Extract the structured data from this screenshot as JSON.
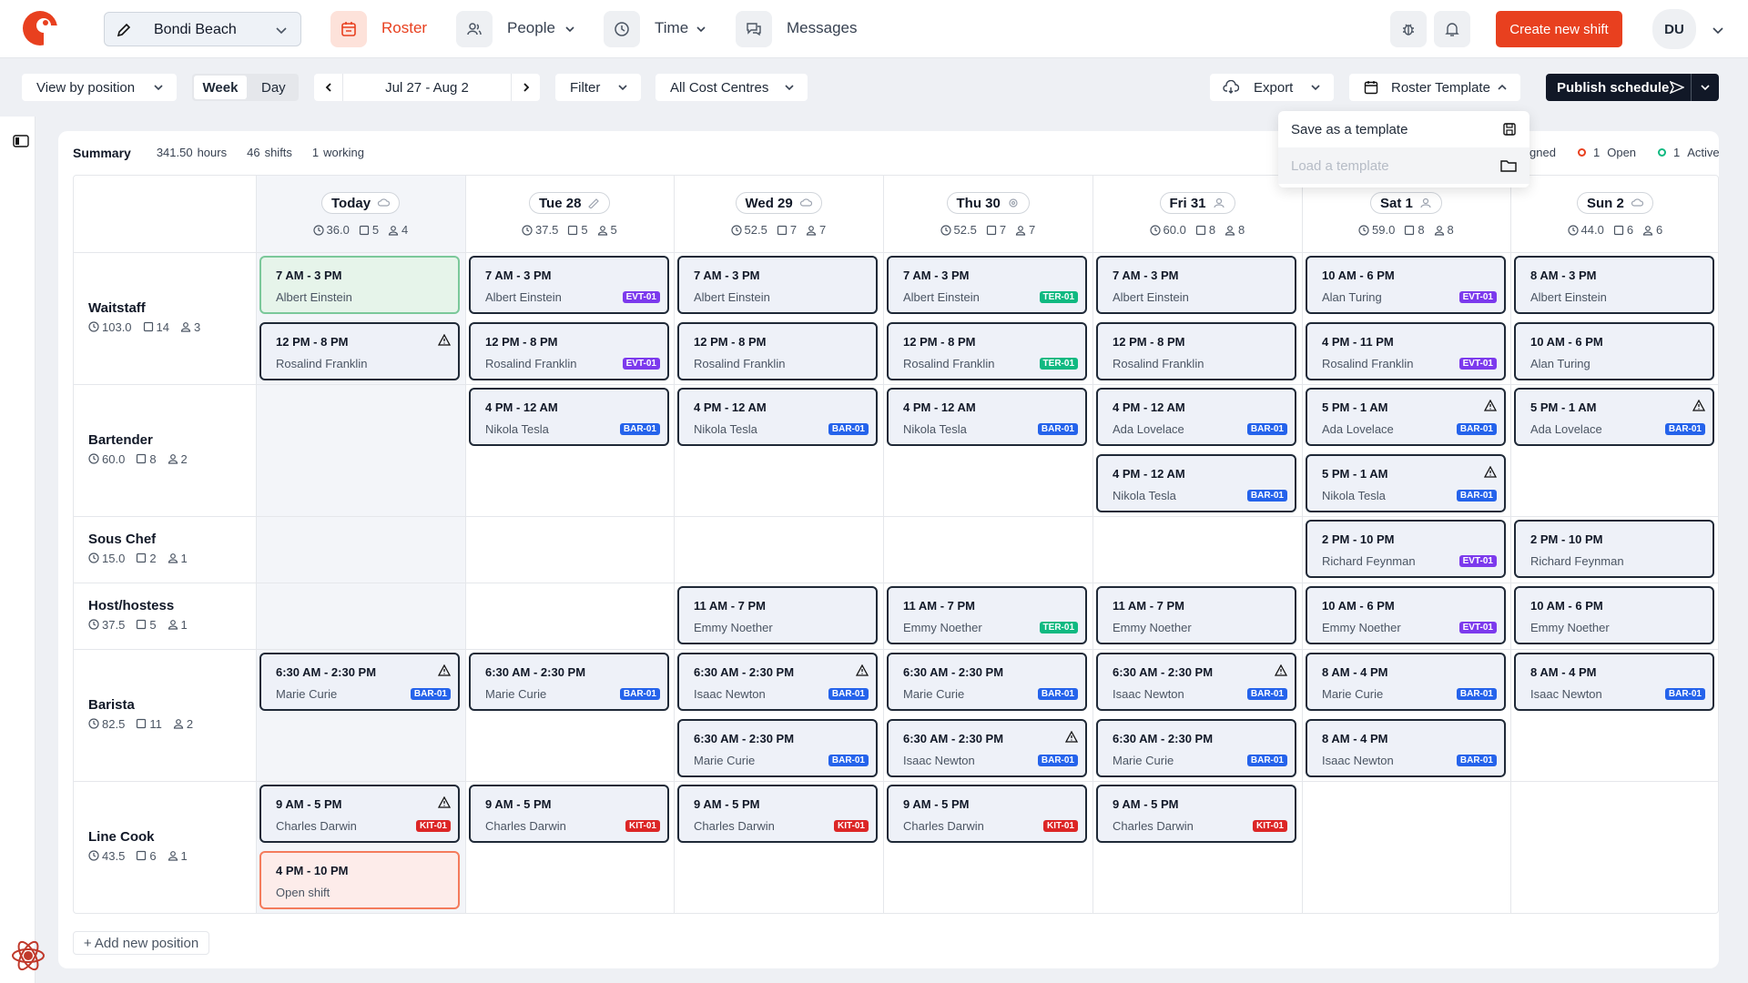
{
  "header": {
    "location": "Bondi Beach",
    "nav": {
      "roster": "Roster",
      "people": "People",
      "time": "Time",
      "messages": "Messages"
    },
    "create_label": "Create new shift",
    "user_initials": "DU",
    "colors": {
      "brand": "#e8401f",
      "evt": "#7c3aed",
      "bar": "#2563eb",
      "ter": "#10b981",
      "kit": "#dc2626"
    }
  },
  "toolbar": {
    "view_by": "View by position",
    "week": "Week",
    "day": "Day",
    "date_range": "Jul 27 - Aug 2",
    "filter": "Filter",
    "cost_centres": "All Cost Centres",
    "export": "Export",
    "roster_template": "Roster Template",
    "publish": "Publish schedule"
  },
  "dropdown": {
    "save": "Save as a template",
    "load": "Load a template"
  },
  "summary": {
    "label": "Summary",
    "hours_value": "341.50",
    "hours_unit": "hours",
    "shifts_value": "46",
    "shifts_unit": "shifts",
    "working_value": "1",
    "working_unit": "working",
    "assigned_frag": "gned",
    "open_value": "1",
    "open_label": "Open",
    "active_value": "1",
    "active_label": "Active"
  },
  "days": [
    {
      "label": "Today",
      "hours": "36.0",
      "shifts": "5",
      "people": "4"
    },
    {
      "label": "Tue 28",
      "hours": "37.5",
      "shifts": "5",
      "people": "5"
    },
    {
      "label": "Wed 29",
      "hours": "52.5",
      "shifts": "7",
      "people": "7"
    },
    {
      "label": "Thu 30",
      "hours": "52.5",
      "shifts": "7",
      "people": "7"
    },
    {
      "label": "Fri 31",
      "hours": "60.0",
      "shifts": "8",
      "people": "8"
    },
    {
      "label": "Sat 1",
      "hours": "59.0",
      "shifts": "8",
      "people": "8"
    },
    {
      "label": "Sun 2",
      "hours": "44.0",
      "shifts": "6",
      "people": "6"
    }
  ],
  "positions": [
    {
      "name": "Waitstaff",
      "hours": "103.0",
      "shifts": "14",
      "people": "3"
    },
    {
      "name": "Bartender",
      "hours": "60.0",
      "shifts": "8",
      "people": "2"
    },
    {
      "name": "Sous Chef",
      "hours": "15.0",
      "shifts": "2",
      "people": "1"
    },
    {
      "name": "Host/hostess",
      "hours": "37.5",
      "shifts": "5",
      "people": "1"
    },
    {
      "name": "Barista",
      "hours": "82.5",
      "shifts": "11",
      "people": "2"
    },
    {
      "name": "Line Cook",
      "hours": "43.5",
      "shifts": "6",
      "people": "1"
    }
  ],
  "shifts": [
    {
      "day": 0,
      "row": 0,
      "slot": 0,
      "time": "7 AM - 3 PM",
      "name": "Albert Einstein",
      "tag": "",
      "style": "green"
    },
    {
      "day": 0,
      "row": 0,
      "slot": 1,
      "time": "12 PM - 8 PM",
      "name": "Rosalind Franklin",
      "tag": "",
      "warn": true
    },
    {
      "day": 1,
      "row": 0,
      "slot": 0,
      "time": "7 AM - 3 PM",
      "name": "Albert Einstein",
      "tag": "EVT-01"
    },
    {
      "day": 1,
      "row": 0,
      "slot": 1,
      "time": "12 PM - 8 PM",
      "name": "Rosalind Franklin",
      "tag": "EVT-01"
    },
    {
      "day": 2,
      "row": 0,
      "slot": 0,
      "time": "7 AM - 3 PM",
      "name": "Albert Einstein",
      "tag": ""
    },
    {
      "day": 2,
      "row": 0,
      "slot": 1,
      "time": "12 PM - 8 PM",
      "name": "Rosalind Franklin",
      "tag": ""
    },
    {
      "day": 3,
      "row": 0,
      "slot": 0,
      "time": "7 AM - 3 PM",
      "name": "Albert Einstein",
      "tag": "TER-01"
    },
    {
      "day": 3,
      "row": 0,
      "slot": 1,
      "time": "12 PM - 8 PM",
      "name": "Rosalind Franklin",
      "tag": "TER-01"
    },
    {
      "day": 4,
      "row": 0,
      "slot": 0,
      "time": "7 AM - 3 PM",
      "name": "Albert Einstein",
      "tag": ""
    },
    {
      "day": 4,
      "row": 0,
      "slot": 1,
      "time": "12 PM - 8 PM",
      "name": "Rosalind Franklin",
      "tag": ""
    },
    {
      "day": 5,
      "row": 0,
      "slot": 0,
      "time": "10 AM - 6 PM",
      "name": "Alan Turing",
      "tag": "EVT-01"
    },
    {
      "day": 5,
      "row": 0,
      "slot": 1,
      "time": "4 PM - 11 PM",
      "name": "Rosalind Franklin",
      "tag": "EVT-01"
    },
    {
      "day": 6,
      "row": 0,
      "slot": 0,
      "time": "8 AM - 3 PM",
      "name": "Albert Einstein",
      "tag": ""
    },
    {
      "day": 6,
      "row": 0,
      "slot": 1,
      "time": "10 AM - 6 PM",
      "name": "Alan Turing",
      "tag": ""
    },
    {
      "day": 1,
      "row": 1,
      "slot": 0,
      "time": "4 PM - 12 AM",
      "name": "Nikola Tesla",
      "tag": "BAR-01"
    },
    {
      "day": 2,
      "row": 1,
      "slot": 0,
      "time": "4 PM - 12 AM",
      "name": "Nikola Tesla",
      "tag": "BAR-01"
    },
    {
      "day": 3,
      "row": 1,
      "slot": 0,
      "time": "4 PM - 12 AM",
      "name": "Nikola Tesla",
      "tag": "BAR-01"
    },
    {
      "day": 4,
      "row": 1,
      "slot": 0,
      "time": "4 PM - 12 AM",
      "name": "Ada Lovelace",
      "tag": "BAR-01"
    },
    {
      "day": 4,
      "row": 1,
      "slot": 1,
      "time": "4 PM - 12 AM",
      "name": "Nikola Tesla",
      "tag": "BAR-01"
    },
    {
      "day": 5,
      "row": 1,
      "slot": 0,
      "time": "5 PM - 1 AM",
      "name": "Ada Lovelace",
      "tag": "BAR-01",
      "warn": true
    },
    {
      "day": 5,
      "row": 1,
      "slot": 1,
      "time": "5 PM - 1 AM",
      "name": "Nikola Tesla",
      "tag": "BAR-01",
      "warn": true
    },
    {
      "day": 6,
      "row": 1,
      "slot": 0,
      "time": "5 PM - 1 AM",
      "name": "Ada Lovelace",
      "tag": "BAR-01",
      "warn": true
    },
    {
      "day": 5,
      "row": 2,
      "slot": 0,
      "time": "2 PM - 10 PM",
      "name": "Richard Feynman",
      "tag": "EVT-01"
    },
    {
      "day": 6,
      "row": 2,
      "slot": 0,
      "time": "2 PM - 10 PM",
      "name": "Richard Feynman",
      "tag": ""
    },
    {
      "day": 2,
      "row": 3,
      "slot": 0,
      "time": "11 AM - 7 PM",
      "name": "Emmy Noether",
      "tag": ""
    },
    {
      "day": 3,
      "row": 3,
      "slot": 0,
      "time": "11 AM - 7 PM",
      "name": "Emmy Noether",
      "tag": "TER-01"
    },
    {
      "day": 4,
      "row": 3,
      "slot": 0,
      "time": "11 AM - 7 PM",
      "name": "Emmy Noether",
      "tag": ""
    },
    {
      "day": 5,
      "row": 3,
      "slot": 0,
      "time": "10 AM - 6 PM",
      "name": "Emmy Noether",
      "tag": "EVT-01"
    },
    {
      "day": 6,
      "row": 3,
      "slot": 0,
      "time": "10 AM - 6 PM",
      "name": "Emmy Noether",
      "tag": ""
    },
    {
      "day": 0,
      "row": 4,
      "slot": 0,
      "time": "6:30 AM - 2:30 PM",
      "name": "Marie Curie",
      "tag": "BAR-01",
      "warn": true
    },
    {
      "day": 1,
      "row": 4,
      "slot": 0,
      "time": "6:30 AM - 2:30 PM",
      "name": "Marie Curie",
      "tag": "BAR-01"
    },
    {
      "day": 2,
      "row": 4,
      "slot": 0,
      "time": "6:30 AM - 2:30 PM",
      "name": "Isaac Newton",
      "tag": "BAR-01",
      "warn": true
    },
    {
      "day": 2,
      "row": 4,
      "slot": 1,
      "time": "6:30 AM - 2:30 PM",
      "name": "Marie Curie",
      "tag": "BAR-01"
    },
    {
      "day": 3,
      "row": 4,
      "slot": 0,
      "time": "6:30 AM - 2:30 PM",
      "name": "Marie Curie",
      "tag": "BAR-01"
    },
    {
      "day": 3,
      "row": 4,
      "slot": 1,
      "time": "6:30 AM - 2:30 PM",
      "name": "Isaac Newton",
      "tag": "BAR-01",
      "warn": true
    },
    {
      "day": 4,
      "row": 4,
      "slot": 0,
      "time": "6:30 AM - 2:30 PM",
      "name": "Isaac Newton",
      "tag": "BAR-01",
      "warn": true
    },
    {
      "day": 4,
      "row": 4,
      "slot": 1,
      "time": "6:30 AM - 2:30 PM",
      "name": "Marie Curie",
      "tag": "BAR-01"
    },
    {
      "day": 5,
      "row": 4,
      "slot": 0,
      "time": "8 AM - 4 PM",
      "name": "Marie Curie",
      "tag": "BAR-01"
    },
    {
      "day": 5,
      "row": 4,
      "slot": 1,
      "time": "8 AM - 4 PM",
      "name": "Isaac Newton",
      "tag": "BAR-01"
    },
    {
      "day": 6,
      "row": 4,
      "slot": 0,
      "time": "8 AM - 4 PM",
      "name": "Isaac Newton",
      "tag": "BAR-01"
    },
    {
      "day": 0,
      "row": 5,
      "slot": 0,
      "time": "9 AM - 5 PM",
      "name": "Charles Darwin",
      "tag": "KIT-01",
      "warn": true
    },
    {
      "day": 0,
      "row": 5,
      "slot": 1,
      "time": "4 PM - 10 PM",
      "name": "Open shift",
      "tag": "",
      "style": "open"
    },
    {
      "day": 1,
      "row": 5,
      "slot": 0,
      "time": "9 AM - 5 PM",
      "name": "Charles Darwin",
      "tag": "KIT-01"
    },
    {
      "day": 2,
      "row": 5,
      "slot": 0,
      "time": "9 AM - 5 PM",
      "name": "Charles Darwin",
      "tag": "KIT-01"
    },
    {
      "day": 3,
      "row": 5,
      "slot": 0,
      "time": "9 AM - 5 PM",
      "name": "Charles Darwin",
      "tag": "KIT-01"
    },
    {
      "day": 4,
      "row": 5,
      "slot": 0,
      "time": "9 AM - 5 PM",
      "name": "Charles Darwin",
      "tag": "KIT-01"
    }
  ],
  "add_position": "+ Add new position"
}
